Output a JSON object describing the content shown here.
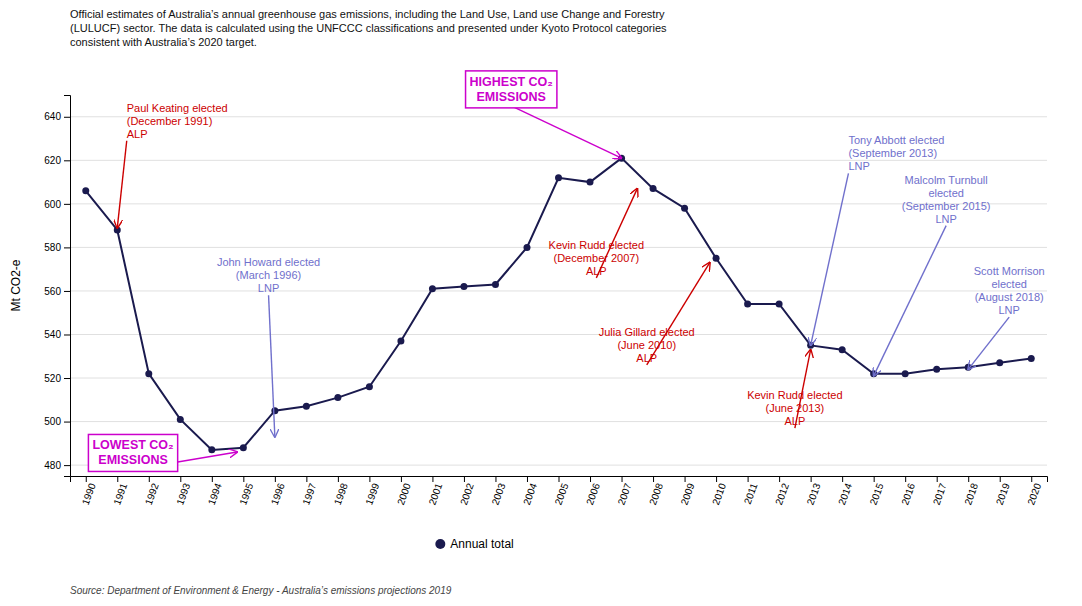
{
  "chart_data": {
    "type": "line",
    "title": "Official estimates of Australia’s annual greenhouse gas emissions, including the Land Use, Land use Change and Forestry\n(LULUCF) sector.  The data is calculated using the UNFCCC classifications and presented under Kyoto Protocol categories\nconsistent with Australia’s 2020 target.",
    "source": "Source: Department of Environment & Energy - Australia’s emissions projections 2019",
    "ylabel": "Mt CO2-e",
    "x": [
      1990,
      1991,
      1992,
      1993,
      1994,
      1995,
      1996,
      1997,
      1998,
      1999,
      2000,
      2001,
      2002,
      2003,
      2004,
      2005,
      2006,
      2007,
      2008,
      2009,
      2010,
      2011,
      2012,
      2013,
      2014,
      2015,
      2016,
      2017,
      2018,
      2019,
      2020
    ],
    "series": [
      {
        "name": "Annual total",
        "color": "#1a1a4e",
        "marker": "circle",
        "values": [
          606,
          588,
          522,
          501,
          487,
          488,
          505,
          507,
          511,
          516,
          537,
          561,
          562,
          563,
          580,
          612,
          610,
          621,
          607,
          598,
          575,
          554,
          554,
          535,
          533,
          522,
          522,
          524,
          525,
          527,
          529
        ]
      }
    ],
    "xlim": [
      1989.5,
      2020.5
    ],
    "xticks": [
      1990,
      1991,
      1992,
      1993,
      1994,
      1995,
      1996,
      1997,
      1998,
      1999,
      2000,
      2001,
      2002,
      2003,
      2004,
      2005,
      2006,
      2007,
      2008,
      2009,
      2010,
      2011,
      2012,
      2013,
      2014,
      2015,
      2016,
      2017,
      2018,
      2019,
      2020
    ],
    "ylim": [
      475,
      650
    ],
    "yticks": [
      480,
      500,
      520,
      540,
      560,
      580,
      600,
      620,
      640
    ],
    "grid": true,
    "legend": "bottom",
    "annotations": [
      {
        "label": "Paul Keating elected\n(December 1991)\nALP",
        "x": 1991.0,
        "y": 589,
        "x_text": 1991.3,
        "y_text": 629,
        "color": "#cc0000"
      },
      {
        "label": "John Howard elected\n(March 1996)\nLNP",
        "x": 1996.0,
        "y": 493,
        "x_text": 1995.8,
        "y_text": 558,
        "color": "#7070cc"
      },
      {
        "label": "Kevin Rudd elected\n(December 2007)\nALP",
        "x": 2007.5,
        "y": 607,
        "x_text": 2006.2,
        "y_text": 566,
        "color": "#cc0000"
      },
      {
        "label": "Julia Gillard elected\n(June 2010)\nALP",
        "x": 2009.8,
        "y": 573,
        "x_text": 2007.8,
        "y_text": 526,
        "color": "#cc0000"
      },
      {
        "label": "Kevin Rudd elected\n(June 2013)\nALP",
        "x": 2013.0,
        "y": 533,
        "x_text": 2012.5,
        "y_text": 497,
        "color": "#cc0000"
      },
      {
        "label": "Tony Abbott elected\n(September 2013)\nLNP",
        "x": 2013.0,
        "y": 535,
        "x_text": 2014.2,
        "y_text": 614,
        "color": "#7070cc"
      },
      {
        "label": "Malcolm Turnbull\nelected\n(September 2015)\nLNP",
        "x": 2015.0,
        "y": 521,
        "x_text": 2017.3,
        "y_text": 590,
        "color": "#7070cc"
      },
      {
        "label": "Scott Morrison\nelected\n(August 2018)\nLNP",
        "x": 2018.0,
        "y": 524,
        "x_text": 2019.3,
        "y_text": 548,
        "color": "#7070cc"
      }
    ],
    "highlights": [
      {
        "label": "HIGHEST CO₂\nEMISSIONS",
        "x": 2007.0,
        "y": 621,
        "x_text": 2003.5,
        "y_text": 645,
        "color": "#cc00cc"
      },
      {
        "label": "LOWEST CO₂\nEMISSIONS",
        "x": 1994.8,
        "y": 486,
        "x_text": 1991.5,
        "y_text": 478,
        "color": "#cc00cc"
      }
    ]
  }
}
